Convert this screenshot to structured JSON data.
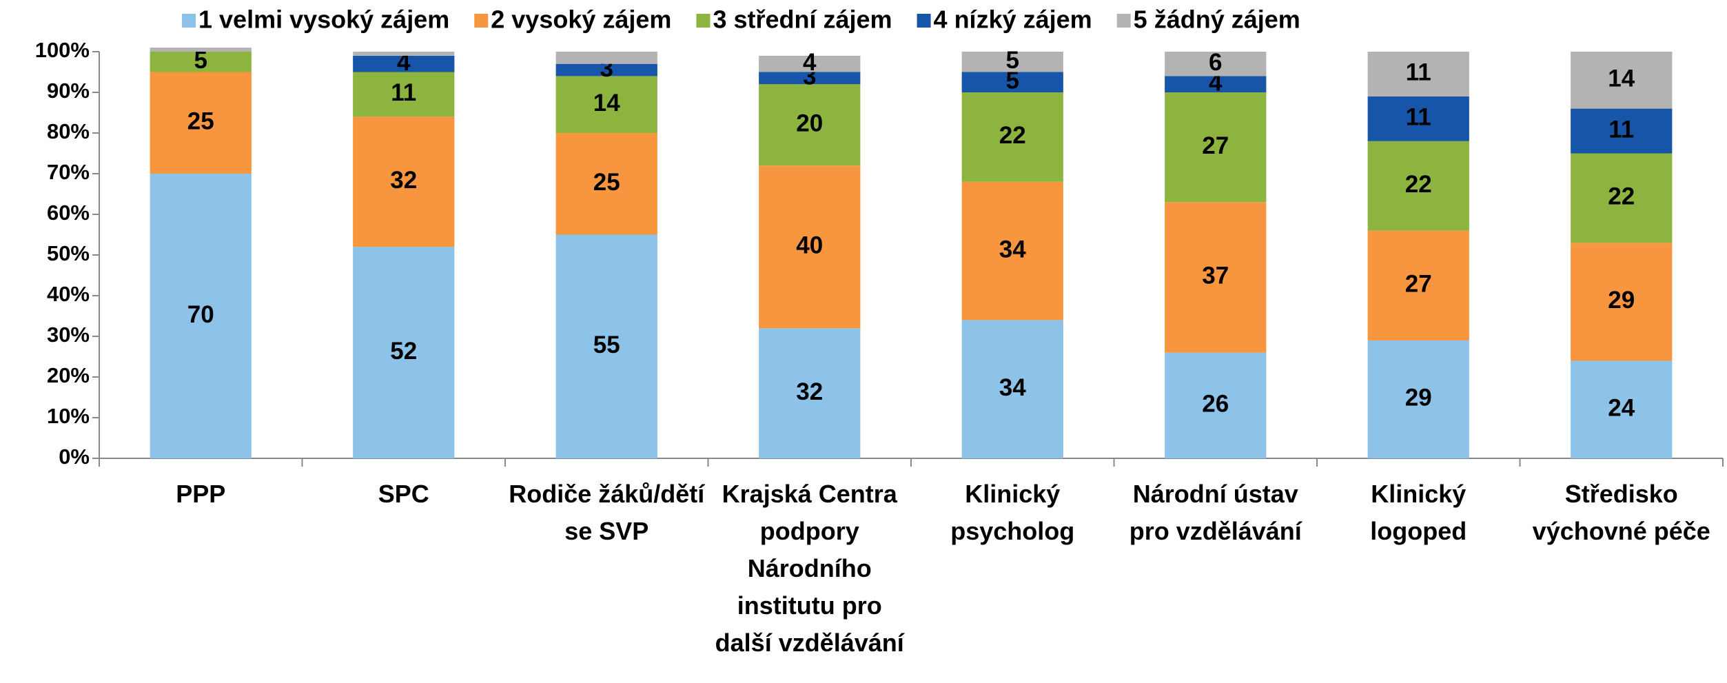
{
  "chart_data": {
    "type": "stacked_bar",
    "categories": [
      "PPP",
      "SPC",
      "Rodiče žáků/dětí se SVP",
      "Krajská Centra podpory Národního institutu pro další vzdělávání",
      "Klinický psycholog",
      "Národní ústav pro vzdělávání",
      "Klinický logoped",
      "Středisko výchovné péče"
    ],
    "series": [
      {
        "name": "1 velmi vysoký zájem",
        "color": "#8dc3e8",
        "label_color": "#000000",
        "values": [
          70,
          52,
          55,
          32,
          34,
          26,
          29,
          24
        ]
      },
      {
        "name": "2 vysoký zájem",
        "color": "#f7963f",
        "label_color": "#000000",
        "values": [
          25,
          32,
          25,
          40,
          34,
          37,
          27,
          29
        ]
      },
      {
        "name": "3 střední zájem",
        "color": "#8db43e",
        "label_color": "#000000",
        "values": [
          5,
          11,
          14,
          20,
          22,
          27,
          22,
          22
        ]
      },
      {
        "name": "4 nízký zájem",
        "color": "#1655a8",
        "label_color": "#ffffff",
        "values": [
          0,
          4,
          3,
          3,
          5,
          4,
          11,
          11
        ],
        "value_labels": [
          null,
          "4",
          "3",
          "3",
          "5",
          "4",
          "11",
          "11"
        ]
      },
      {
        "name": "5 žádný zájem",
        "color": "#b3b3b3",
        "label_color": "#000000",
        "values": [
          1,
          1,
          3,
          4,
          5,
          6,
          11,
          14
        ],
        "value_labels": [
          null,
          null,
          null,
          "4",
          "5",
          "6",
          "11",
          "14"
        ]
      }
    ],
    "ylim": [
      0,
      100
    ],
    "yticks": [
      {
        "value": 0,
        "label": "0%"
      },
      {
        "value": 10,
        "label": "10%"
      },
      {
        "value": 20,
        "label": "20%"
      },
      {
        "value": 30,
        "label": "30%"
      },
      {
        "value": 40,
        "label": "40%"
      },
      {
        "value": 50,
        "label": "50%"
      },
      {
        "value": 60,
        "label": "60%"
      },
      {
        "value": 70,
        "label": "70%"
      },
      {
        "value": 80,
        "label": "80%"
      },
      {
        "value": 90,
        "label": "90%"
      },
      {
        "value": 100,
        "label": "100%"
      }
    ],
    "legend": "top",
    "grid": false
  }
}
